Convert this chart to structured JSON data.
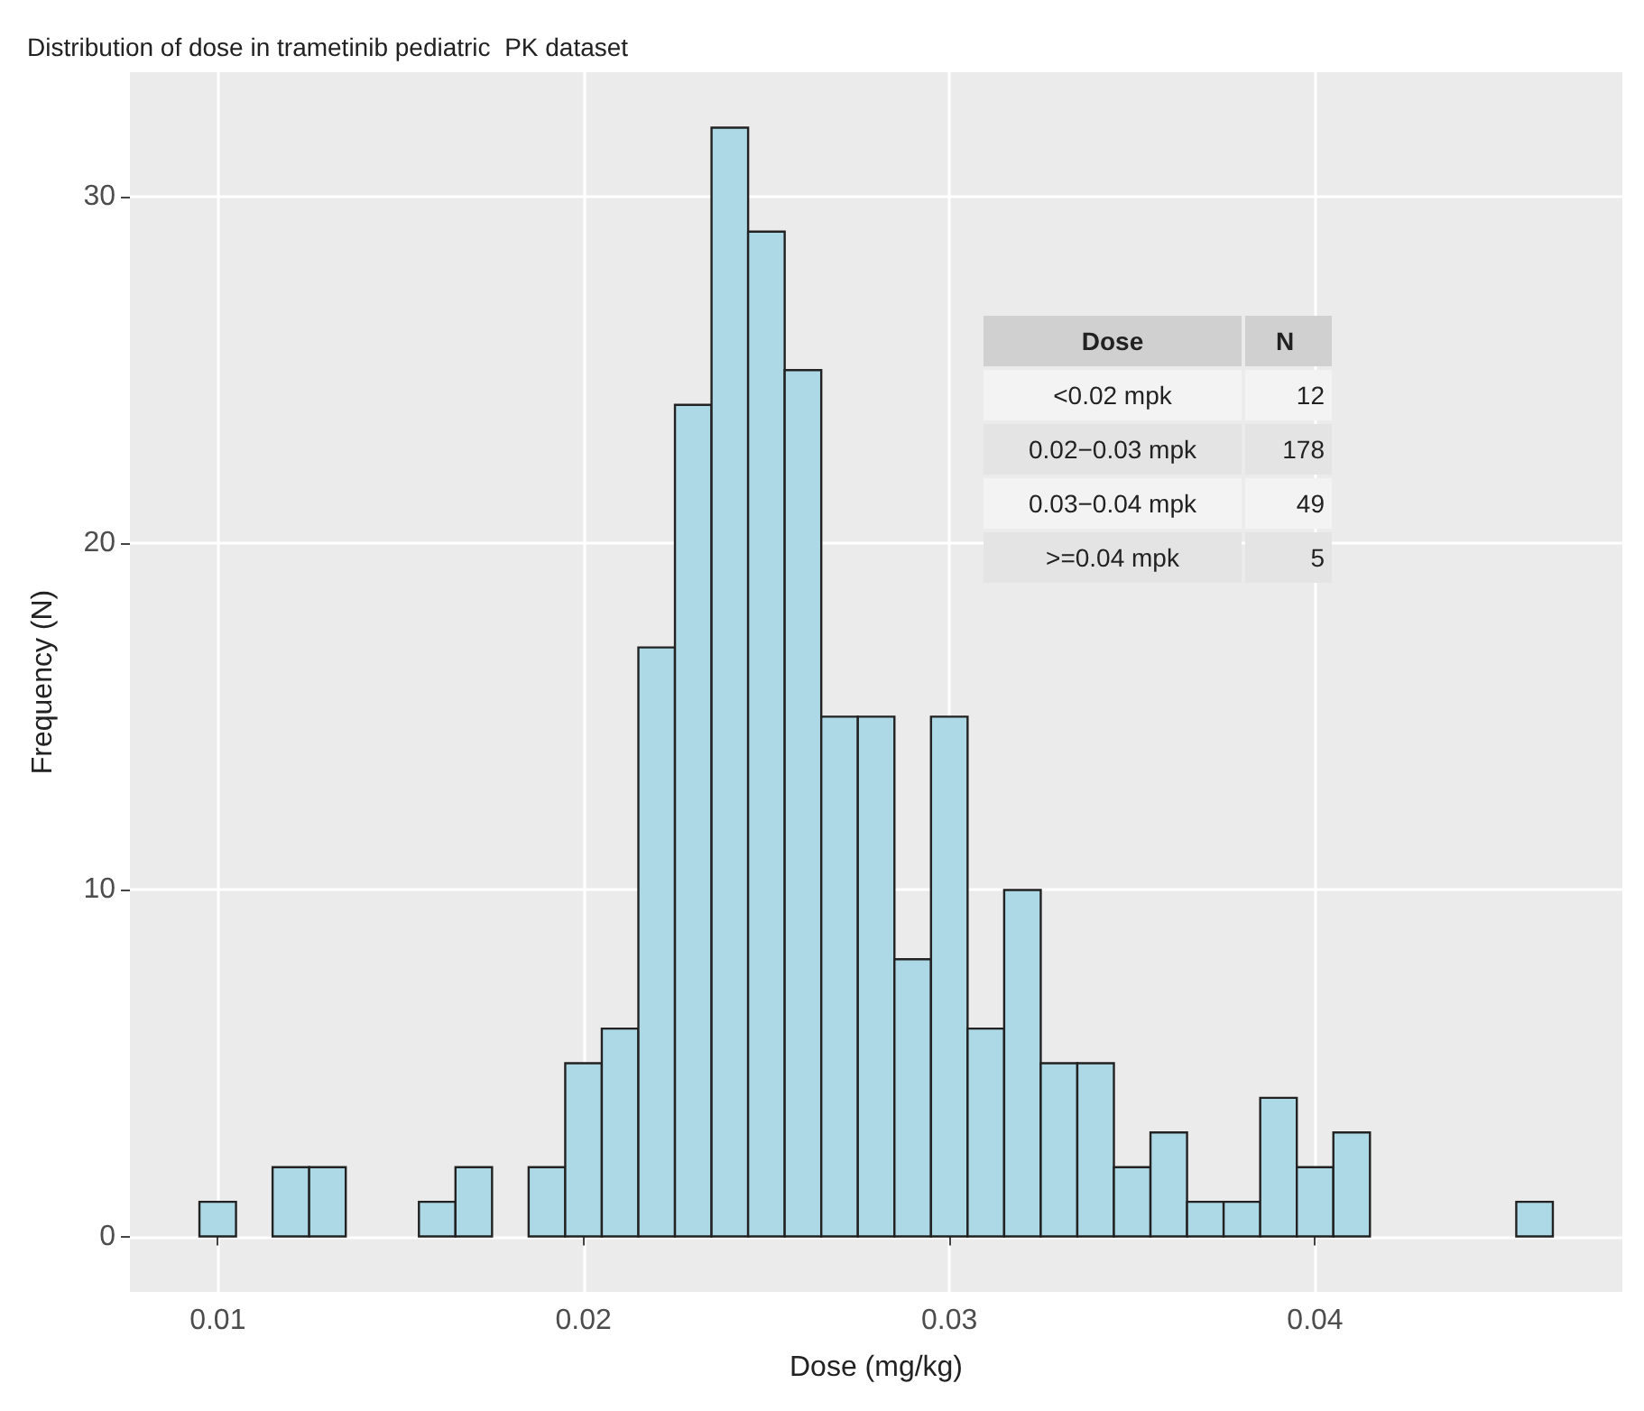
{
  "chart_data": {
    "type": "histogram",
    "title": "Distribution of dose in trametinib pediatric  PK dataset",
    "xlabel": "Dose (mg/kg)",
    "ylabel": "Frequency (N)",
    "bins": [
      0.0095,
      0.0105,
      0.0115,
      0.0125,
      0.0135,
      0.0145,
      0.0155,
      0.0165,
      0.0175,
      0.0185,
      0.0195,
      0.0205,
      0.0215,
      0.0225,
      0.0235,
      0.0245,
      0.0255,
      0.0265,
      0.0275,
      0.0285,
      0.0295,
      0.0305,
      0.0315,
      0.0325,
      0.0335,
      0.0345,
      0.0355,
      0.0365,
      0.0375,
      0.0385,
      0.0395,
      0.0405,
      0.0415,
      0.0425,
      0.0435,
      0.0445,
      0.0455,
      0.0465
    ],
    "values": [
      1,
      0,
      2,
      2,
      0,
      0,
      1,
      2,
      0,
      2,
      5,
      6,
      17,
      24,
      32,
      29,
      25,
      15,
      15,
      8,
      15,
      6,
      10,
      5,
      5,
      2,
      3,
      1,
      1,
      4,
      2,
      3,
      0,
      0,
      0,
      0,
      1
    ],
    "color": "#add8e6",
    "xlim": [
      0.0076,
      0.0484
    ],
    "xticks": [
      0.01,
      0.02,
      0.03,
      0.04
    ],
    "ylim": [
      -1.6,
      33.6
    ],
    "yticks": [
      0,
      10,
      20,
      30
    ],
    "grid": true,
    "annotations": [
      "Dose",
      "N",
      "<0.02 mpk",
      "12",
      "0.02−0.03 mpk",
      "178",
      "0.03−0.04 mpk",
      "49",
      ">=0.04 mpk",
      "5"
    ]
  }
}
